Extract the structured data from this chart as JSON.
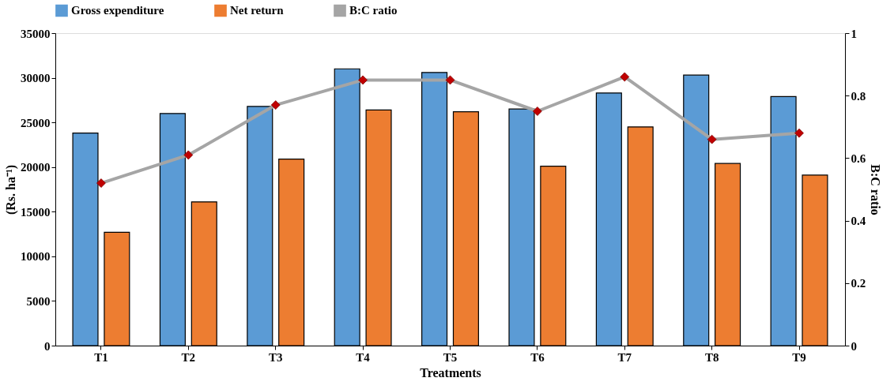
{
  "chart_data": {
    "type": "bar",
    "xlabel": "Treatments",
    "ylabel": "(Rs. ha⁻¹)",
    "y2label": "B:C ratio",
    "categories": [
      "T1",
      "T2",
      "T3",
      "T4",
      "T5",
      "T6",
      "T7",
      "T8",
      "T9"
    ],
    "series": [
      {
        "name": "Gross expenditure",
        "color": "#5b9bd5",
        "values": [
          23800,
          26000,
          26800,
          31000,
          30600,
          26500,
          28300,
          30300,
          27900
        ]
      },
      {
        "name": "Net return",
        "color": "#ed7d31",
        "values": [
          12700,
          16100,
          20900,
          26400,
          26200,
          20100,
          24500,
          20400,
          19100
        ]
      },
      {
        "name": "B:C ratio",
        "type": "line",
        "axis": "y2",
        "marker": "diamond",
        "color": "#a5a5a5",
        "colors": [
          "#c00000",
          "#c00000",
          "#c00000",
          "#c00000",
          "#c00000",
          "#c00000",
          "#c00000",
          "#c00000",
          "#c00000"
        ],
        "values": [
          0.52,
          0.61,
          0.77,
          0.85,
          0.85,
          0.75,
          0.86,
          0.66,
          0.68
        ]
      }
    ],
    "ylim": [
      0,
      35000
    ],
    "yticks": [
      0,
      5000,
      10000,
      15000,
      20000,
      25000,
      30000,
      35000
    ],
    "y2lim": [
      0,
      1
    ],
    "y2ticks": [
      0,
      0.2,
      0.4,
      0.6,
      0.8,
      1
    ],
    "grid": false,
    "legend": "top"
  }
}
